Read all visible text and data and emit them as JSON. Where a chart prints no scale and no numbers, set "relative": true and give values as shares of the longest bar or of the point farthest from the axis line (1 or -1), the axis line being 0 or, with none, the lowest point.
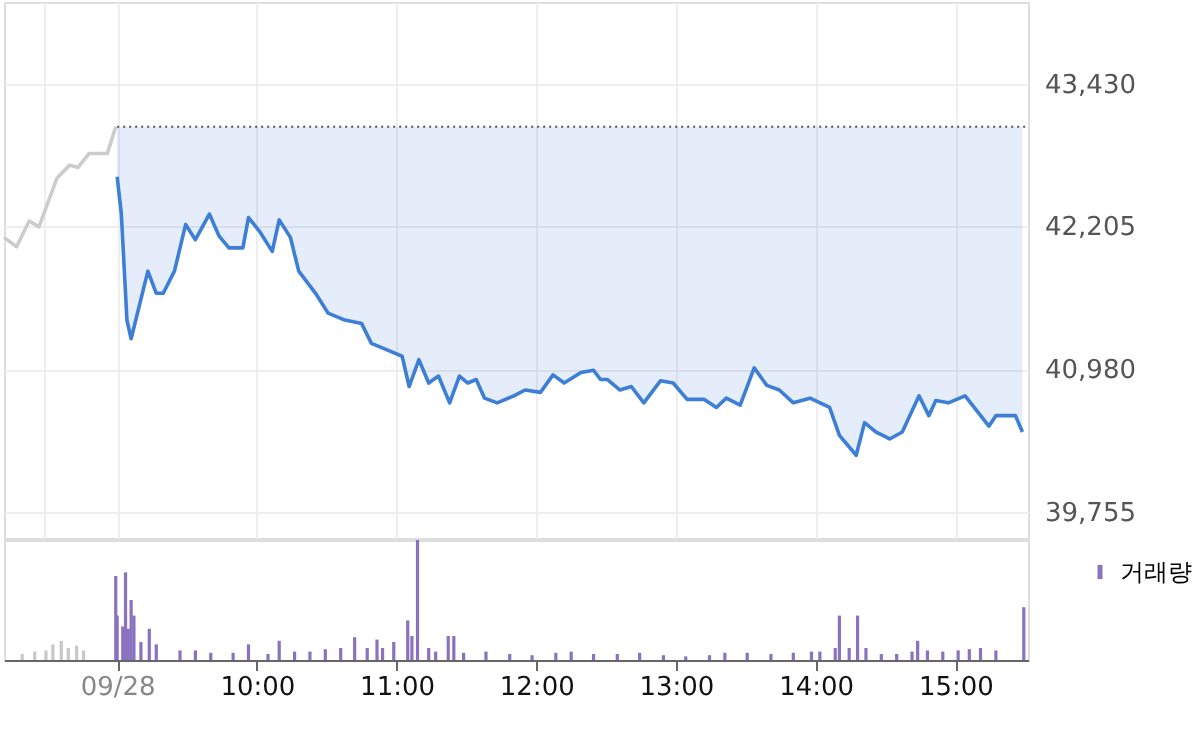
{
  "chart_data": [
    {
      "type": "line",
      "xlim": [
        8.19,
        15.52
      ],
      "ylim": [
        39530,
        44130
      ],
      "xticks": [
        {
          "value": 8.48,
          "label": null
        },
        {
          "value": 9,
          "label": null
        },
        {
          "value": 10,
          "label": null
        },
        {
          "value": 11,
          "label": null
        },
        {
          "value": 12,
          "label": null
        },
        {
          "value": 13,
          "label": null
        },
        {
          "value": 14,
          "label": null
        },
        {
          "value": 15,
          "label": null
        }
      ],
      "yticks": [
        {
          "value": 39755,
          "label": "39,755"
        },
        {
          "value": 40980,
          "label": "40,980"
        },
        {
          "value": 42205,
          "label": "42,205"
        },
        {
          "value": 43430,
          "label": "43,430"
        }
      ],
      "grid": true,
      "tick_labels": "y",
      "line_style": "solid",
      "marker": "none",
      "ref_lines": [
        {
          "axis": "y",
          "value": 43060,
          "label": null,
          "color": "#555555",
          "line_style": "dotted"
        }
      ],
      "series": [
        {
          "type": "line",
          "color": "#cccccc",
          "x": [
            8.19,
            8.28,
            8.37,
            8.44,
            8.57,
            8.66,
            8.72,
            8.8,
            8.93,
            8.99
          ],
          "values": [
            42110,
            42030,
            42250,
            42200,
            42620,
            42730,
            42710,
            42830,
            42830,
            43060
          ]
        },
        {
          "type": "line",
          "color": "#3d7fd6",
          "x": [
            9.0,
            9.03,
            9.07,
            9.1,
            9.22,
            9.28,
            9.33,
            9.41,
            9.49,
            9.56,
            9.66,
            9.73,
            9.8,
            9.9,
            9.94,
            10.02,
            10.11,
            10.16,
            10.24,
            10.3,
            10.42,
            10.51,
            10.63,
            10.75,
            10.82,
            10.94,
            11.04,
            11.09,
            11.16,
            11.23,
            11.3,
            11.38,
            11.45,
            11.51,
            11.57,
            11.63,
            11.72,
            11.84,
            11.92,
            12.03,
            12.12,
            12.2,
            12.32,
            12.41,
            12.46,
            12.51,
            12.6,
            12.68,
            12.77,
            12.89,
            12.98,
            13.08,
            13.2,
            13.29,
            13.36,
            13.46,
            13.56,
            13.65,
            13.74,
            13.84,
            13.96,
            14.1,
            14.17,
            14.29,
            14.35,
            14.43,
            14.53,
            14.62,
            14.74,
            14.81,
            14.86,
            14.95,
            15.07,
            15.24,
            15.29,
            15.43,
            15.48
          ],
          "values": [
            42630,
            42310,
            41400,
            41240,
            41820,
            41630,
            41630,
            41820,
            42220,
            42090,
            42310,
            42120,
            42020,
            42020,
            42280,
            42160,
            41990,
            42260,
            42110,
            41820,
            41630,
            41460,
            41400,
            41370,
            41200,
            41140,
            41090,
            40830,
            41060,
            40860,
            40920,
            40690,
            40920,
            40860,
            40890,
            40730,
            40690,
            40750,
            40800,
            40780,
            40930,
            40860,
            40950,
            40970,
            40890,
            40890,
            40800,
            40830,
            40690,
            40880,
            40860,
            40720,
            40720,
            40650,
            40730,
            40670,
            40990,
            40840,
            40800,
            40690,
            40730,
            40650,
            40410,
            40240,
            40520,
            40440,
            40380,
            40440,
            40750,
            40580,
            40710,
            40690,
            40750,
            40490,
            40580,
            40580,
            40440
          ],
          "lower": [
            42630,
            42310,
            41400,
            41240,
            41820,
            41630,
            41630,
            41820,
            42220,
            42090,
            42310,
            42120,
            42020,
            42020,
            42280,
            42160,
            41990,
            42260,
            42110,
            41820,
            41630,
            41460,
            41400,
            41370,
            41200,
            41140,
            41090,
            40830,
            41060,
            40860,
            40920,
            40690,
            40920,
            40860,
            40890,
            40730,
            40690,
            40750,
            40800,
            40780,
            40930,
            40860,
            40950,
            40970,
            40890,
            40890,
            40800,
            40830,
            40690,
            40880,
            40860,
            40720,
            40720,
            40650,
            40730,
            40670,
            40990,
            40840,
            40800,
            40690,
            40730,
            40650,
            40410,
            40240,
            40520,
            40440,
            40380,
            40440,
            40750,
            40580,
            40710,
            40690,
            40750,
            40490,
            40580,
            40580,
            40440
          ],
          "upper": [
            43060,
            43060,
            43060,
            43060,
            43060,
            43060,
            43060,
            43060,
            43060,
            43060,
            43060,
            43060,
            43060,
            43060,
            43060,
            43060,
            43060,
            43060,
            43060,
            43060,
            43060,
            43060,
            43060,
            43060,
            43060,
            43060,
            43060,
            43060,
            43060,
            43060,
            43060,
            43060,
            43060,
            43060,
            43060,
            43060,
            43060,
            43060,
            43060,
            43060,
            43060,
            43060,
            43060,
            43060,
            43060,
            43060,
            43060,
            43060,
            43060,
            43060,
            43060,
            43060,
            43060,
            43060,
            43060,
            43060,
            43060,
            43060,
            43060,
            43060,
            43060,
            43060,
            43060,
            43060,
            43060,
            43060,
            43060,
            43060,
            43060,
            43060,
            43060,
            43060,
            43060,
            43060,
            43060,
            43060,
            43060
          ]
        }
      ]
    },
    {
      "type": "bar",
      "relative": true,
      "xlim": [
        8.19,
        15.52
      ],
      "xticks": [
        {
          "value": 9,
          "label": "09/28"
        },
        {
          "value": 10,
          "label": "10:00"
        },
        {
          "value": 11,
          "label": "11:00"
        },
        {
          "value": 12,
          "label": "12:00"
        },
        {
          "value": 13,
          "label": "13:00"
        },
        {
          "value": 14,
          "label": "14:00"
        },
        {
          "value": 15,
          "label": "15:00"
        }
      ],
      "tick_labels": "x",
      "legend": "top right",
      "series": [
        {
          "color": "#c8c8c8",
          "x": [
            8.32,
            8.41,
            8.49,
            8.54,
            8.6,
            8.65,
            8.71,
            8.76
          ],
          "values": [
            0.05,
            0.07,
            0.08,
            0.13,
            0.16,
            0.1,
            0.12,
            0.08
          ]
        },
        {
          "name": "거래량",
          "color": "#8a72c0",
          "x": [
            8.99,
            9.0,
            9.04,
            9.06,
            9.08,
            9.1,
            9.12,
            9.17,
            9.23,
            9.28,
            9.45,
            9.56,
            9.67,
            9.83,
            9.94,
            10.08,
            10.16,
            10.27,
            10.38,
            10.49,
            10.6,
            10.7,
            10.79,
            10.86,
            10.9,
            10.98,
            11.08,
            11.11,
            11.15,
            11.23,
            11.28,
            11.37,
            11.41,
            11.48,
            11.64,
            11.81,
            11.97,
            12.14,
            12.25,
            12.41,
            12.58,
            12.74,
            12.91,
            13.07,
            13.24,
            13.35,
            13.51,
            13.68,
            13.84,
            13.97,
            14.03,
            14.14,
            14.17,
            14.24,
            14.3,
            14.36,
            14.47,
            14.58,
            14.69,
            14.73,
            14.8,
            14.91,
            15.02,
            15.1,
            15.18,
            15.29,
            15.49
          ],
          "values": [
            0.7,
            0.37,
            0.28,
            0.73,
            0.26,
            0.5,
            0.37,
            0.15,
            0.26,
            0.13,
            0.08,
            0.08,
            0.06,
            0.06,
            0.13,
            0.05,
            0.16,
            0.07,
            0.07,
            0.09,
            0.1,
            0.19,
            0.1,
            0.17,
            0.1,
            0.15,
            0.33,
            0.2,
            1.0,
            0.1,
            0.07,
            0.2,
            0.2,
            0.06,
            0.07,
            0.05,
            0.04,
            0.06,
            0.07,
            0.05,
            0.05,
            0.06,
            0.04,
            0.03,
            0.04,
            0.06,
            0.06,
            0.05,
            0.06,
            0.07,
            0.07,
            0.1,
            0.37,
            0.1,
            0.37,
            0.1,
            0.05,
            0.05,
            0.07,
            0.16,
            0.08,
            0.07,
            0.08,
            0.09,
            0.1,
            0.08,
            0.44
          ]
        }
      ]
    }
  ]
}
